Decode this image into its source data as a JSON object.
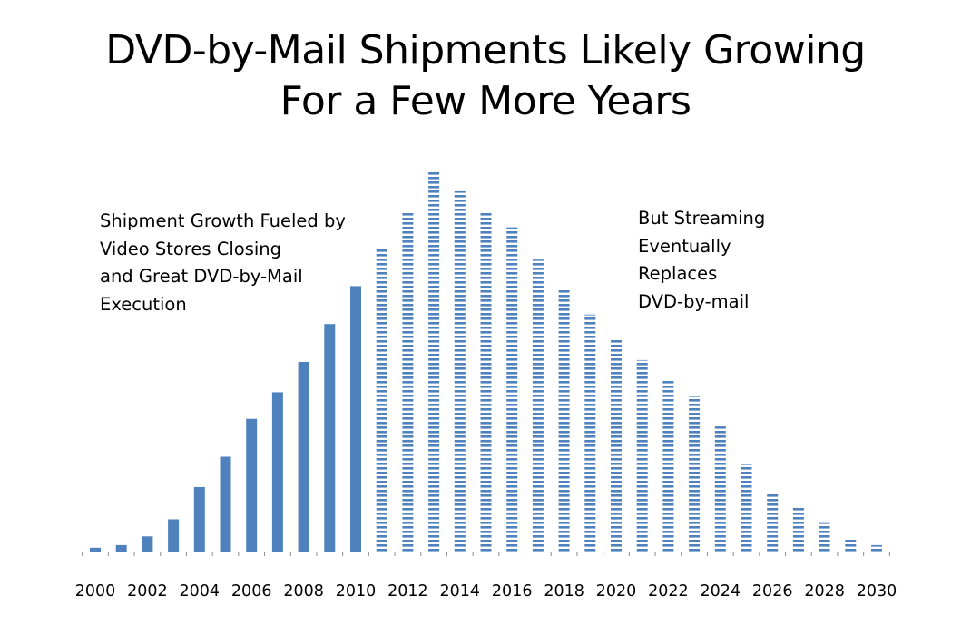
{
  "chart_data": {
    "type": "bar",
    "title": [
      "DVD-by-Mail Shipments Likely Growing",
      "For a Few More Years"
    ],
    "xlabel": "",
    "ylabel": "",
    "categories": [
      "2000",
      "2001",
      "2002",
      "2003",
      "2004",
      "2005",
      "2006",
      "2007",
      "2008",
      "2009",
      "2010",
      "2011",
      "2012",
      "2013",
      "2014",
      "2015",
      "2016",
      "2017",
      "2018",
      "2019",
      "2020",
      "2021",
      "2022",
      "2023",
      "2024",
      "2025",
      "2026",
      "2027",
      "2028",
      "2029",
      "2030"
    ],
    "tick_labels": [
      "2000",
      "2002",
      "2004",
      "2006",
      "2008",
      "2010",
      "2012",
      "2014",
      "2016",
      "2018",
      "2020",
      "2022",
      "2024",
      "2026",
      "2028",
      "2030"
    ],
    "series": [
      {
        "values": [
          1,
          1.7,
          4,
          8.5,
          17,
          25,
          35,
          42,
          50,
          60,
          70,
          80,
          89.5,
          100,
          95,
          89.5,
          85.5,
          77,
          69.5,
          62.5,
          56,
          50.5,
          45,
          41,
          33,
          23,
          15.5,
          11.5,
          7.5,
          3.5,
          1.7
        ],
        "style": [
          "solid",
          "solid",
          "solid",
          "solid",
          "solid",
          "solid",
          "solid",
          "solid",
          "solid",
          "solid",
          "solid",
          "striped",
          "striped",
          "striped",
          "striped",
          "striped",
          "striped",
          "striped",
          "striped",
          "striped",
          "striped",
          "striped",
          "striped",
          "striped",
          "striped",
          "striped",
          "striped",
          "striped",
          "striped",
          "striped",
          "striped"
        ]
      }
    ],
    "ylim": [
      0,
      100
    ],
    "grid": false,
    "legend": "none",
    "colors": {
      "bar": "#4f81bd",
      "axis": "#8c8c8c",
      "text": "#000000"
    }
  },
  "annotations": {
    "left": [
      "Shipment Growth Fueled by",
      "Video Stores Closing",
      "and Great DVD-by-Mail",
      "Execution"
    ],
    "right": [
      "But Streaming",
      "Eventually",
      "Replaces",
      "DVD-by-mail"
    ]
  }
}
